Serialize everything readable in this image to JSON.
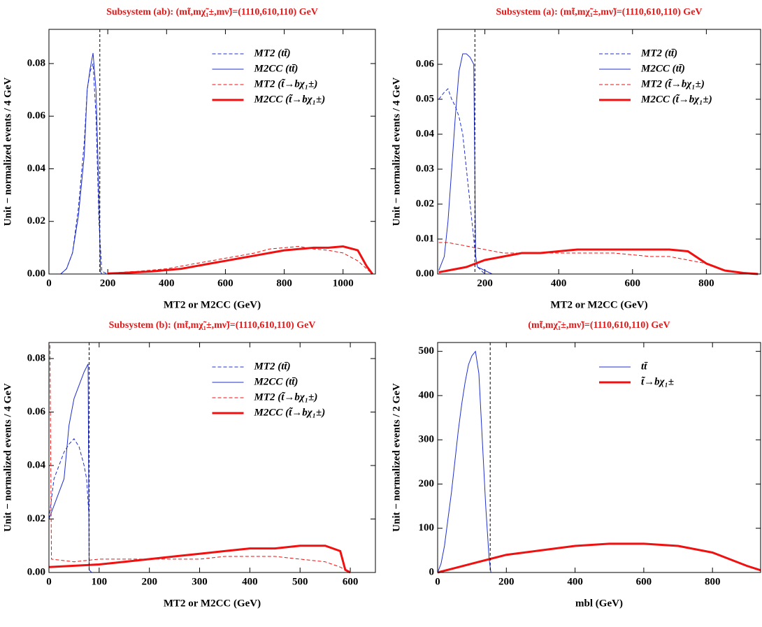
{
  "chart_data": [
    {
      "type": "line",
      "title": "Subsystem (ab): (mt̃,mχ̃₁±,mν̃)=(1110,610,110) GeV",
      "xlabel": "MT2 or M2CC (GeV)",
      "ylabel": "Unit − normalized events / 4 GeV",
      "xlim": [
        0,
        1110
      ],
      "ylim": [
        0,
        0.093
      ],
      "xticks": [
        0,
        200,
        400,
        600,
        800,
        1000
      ],
      "yticks": [
        {
          "value": 0,
          "label": "0.00"
        },
        {
          "value": 0.02,
          "label": "0.02"
        },
        {
          "value": 0.04,
          "label": "0.04"
        },
        {
          "value": 0.06,
          "label": "0.06"
        },
        {
          "value": 0.08,
          "label": "0.08"
        }
      ],
      "vline": 173,
      "series": [
        {
          "name": "MT2 (tt̄)",
          "color": "#1f2fd0",
          "dash": true,
          "width": 1,
          "x": [
            40,
            60,
            80,
            100,
            120,
            130,
            140,
            150,
            160,
            170,
            180,
            200
          ],
          "values": [
            0,
            0.002,
            0.008,
            0.025,
            0.05,
            0.07,
            0.077,
            0.08,
            0.06,
            0.02,
            0.001,
            0
          ]
        },
        {
          "name": "M2CC (tt̄)",
          "color": "#1f2fd0",
          "dash": false,
          "width": 1,
          "x": [
            40,
            60,
            80,
            100,
            120,
            130,
            140,
            150,
            160,
            170,
            175,
            180
          ],
          "values": [
            0,
            0.002,
            0.008,
            0.022,
            0.045,
            0.07,
            0.078,
            0.084,
            0.07,
            0.03,
            0.001,
            0
          ]
        },
        {
          "name": "MT2 (t̃→bχ₁±)",
          "color": "#f01010",
          "dash": true,
          "width": 1,
          "x": [
            200,
            250,
            300,
            350,
            400,
            450,
            500,
            550,
            600,
            650,
            700,
            750,
            800,
            850,
            900,
            950,
            1000,
            1050,
            1100
          ],
          "values": [
            0.0003,
            0.0007,
            0.001,
            0.0015,
            0.002,
            0.003,
            0.004,
            0.005,
            0.006,
            0.007,
            0.008,
            0.0095,
            0.01,
            0.0105,
            0.0095,
            0.009,
            0.008,
            0.005,
            0
          ]
        },
        {
          "name": "M2CC (t̃→bχ₁±)",
          "color": "#f01010",
          "dash": false,
          "width": 3,
          "x": [
            200,
            250,
            300,
            350,
            400,
            450,
            500,
            550,
            600,
            650,
            700,
            750,
            800,
            850,
            900,
            950,
            1000,
            1050,
            1080,
            1100
          ],
          "values": [
            0.0002,
            0.0004,
            0.0007,
            0.001,
            0.0015,
            0.002,
            0.003,
            0.004,
            0.005,
            0.006,
            0.007,
            0.008,
            0.009,
            0.0095,
            0.01,
            0.01,
            0.0105,
            0.009,
            0.003,
            0
          ]
        }
      ]
    },
    {
      "type": "line",
      "title": "Subsystem (a): (mt̃,mχ̃₁±,mν̃)=(1110,610,110) GeV",
      "xlabel": "MT2 or M2CC (GeV)",
      "ylabel": "Unit − normalized events / 4 GeV",
      "xlim": [
        72,
        947
      ],
      "ylim": [
        0,
        0.07
      ],
      "xticks": [
        200,
        400,
        600,
        800
      ],
      "yticks": [
        {
          "value": 0,
          "label": "0.00"
        },
        {
          "value": 0.01,
          "label": "0.01"
        },
        {
          "value": 0.02,
          "label": "0.02"
        },
        {
          "value": 0.03,
          "label": "0.03"
        },
        {
          "value": 0.04,
          "label": "0.04"
        },
        {
          "value": 0.05,
          "label": "0.05"
        },
        {
          "value": 0.06,
          "label": "0.06"
        }
      ],
      "vline": 173,
      "series": [
        {
          "name": "MT2 (tt̄)",
          "color": "#1f2fd0",
          "dash": true,
          "width": 1,
          "x": [
            75,
            90,
            100,
            110,
            120,
            130,
            140,
            150,
            160,
            170,
            175,
            180,
            200
          ],
          "values": [
            0.05,
            0.052,
            0.053,
            0.05,
            0.048,
            0.045,
            0.04,
            0.03,
            0.02,
            0.01,
            0.005,
            0.002,
            0
          ]
        },
        {
          "name": "M2CC (tt̄)",
          "color": "#1f2fd0",
          "dash": false,
          "width": 1,
          "x": [
            75,
            90,
            100,
            110,
            120,
            130,
            140,
            150,
            160,
            170,
            175,
            180,
            200,
            220
          ],
          "values": [
            0.001,
            0.005,
            0.015,
            0.03,
            0.045,
            0.058,
            0.063,
            0.063,
            0.062,
            0.06,
            0.005,
            0.002,
            0.001,
            0
          ]
        },
        {
          "name": "MT2 (t̃→bχ₁±)",
          "color": "#f01010",
          "dash": true,
          "width": 1,
          "x": [
            75,
            100,
            150,
            200,
            250,
            300,
            350,
            400,
            450,
            500,
            550,
            600,
            650,
            700,
            750,
            800,
            850,
            900,
            940
          ],
          "values": [
            0.009,
            0.009,
            0.008,
            0.007,
            0.006,
            0.006,
            0.006,
            0.006,
            0.006,
            0.006,
            0.006,
            0.0055,
            0.005,
            0.005,
            0.004,
            0.003,
            0.001,
            0.0003,
            0
          ]
        },
        {
          "name": "M2CC (t̃→bχ₁±)",
          "color": "#f01010",
          "dash": false,
          "width": 3,
          "x": [
            75,
            100,
            150,
            200,
            250,
            300,
            350,
            400,
            450,
            500,
            550,
            600,
            650,
            700,
            750,
            800,
            850,
            900,
            940
          ],
          "values": [
            0.0005,
            0.001,
            0.002,
            0.004,
            0.005,
            0.006,
            0.006,
            0.0065,
            0.007,
            0.007,
            0.007,
            0.007,
            0.007,
            0.007,
            0.0065,
            0.003,
            0.001,
            0.0003,
            0
          ]
        }
      ]
    },
    {
      "type": "line",
      "title": "Subsystem (b): (mt̃,mχ̃₁±,mν̃)=(1110,610,110) GeV",
      "xlabel": "MT2 or M2CC (GeV)",
      "ylabel": "Unit − normalized events / 4 GeV",
      "xlim": [
        0,
        650
      ],
      "ylim": [
        0,
        0.086
      ],
      "xticks": [
        0,
        100,
        200,
        300,
        400,
        500,
        600
      ],
      "yticks": [
        {
          "value": 0,
          "label": "0.00"
        },
        {
          "value": 0.02,
          "label": "0.02"
        },
        {
          "value": 0.04,
          "label": "0.04"
        },
        {
          "value": 0.06,
          "label": "0.06"
        },
        {
          "value": 0.08,
          "label": "0.08"
        }
      ],
      "vline": 80,
      "series": [
        {
          "name": "MT2 (tt̄)",
          "color": "#1f2fd0",
          "dash": true,
          "width": 1,
          "x": [
            0,
            10,
            20,
            30,
            40,
            50,
            60,
            70,
            75,
            80
          ],
          "values": [
            0.02,
            0.035,
            0.04,
            0.045,
            0.048,
            0.05,
            0.047,
            0.04,
            0.035,
            0.02
          ]
        },
        {
          "name": "M2CC (tt̄)",
          "color": "#1f2fd0",
          "dash": false,
          "width": 1,
          "x": [
            0,
            10,
            20,
            30,
            40,
            50,
            60,
            70,
            78,
            80,
            85
          ],
          "values": [
            0.02,
            0.025,
            0.03,
            0.035,
            0.055,
            0.065,
            0.07,
            0.075,
            0.078,
            0.001,
            0
          ]
        },
        {
          "name": "MT2 (t̃→bχ₁±)",
          "color": "#f01010",
          "dash": true,
          "width": 1,
          "x": [
            2,
            5,
            50,
            100,
            150,
            200,
            250,
            300,
            350,
            400,
            450,
            500,
            550,
            580,
            600
          ],
          "values": [
            0.085,
            0.005,
            0.004,
            0.005,
            0.005,
            0.005,
            0.005,
            0.005,
            0.006,
            0.006,
            0.006,
            0.005,
            0.004,
            0.002,
            0
          ]
        },
        {
          "name": "M2CC (t̃→bχ₁±)",
          "color": "#f01010",
          "dash": false,
          "width": 3,
          "x": [
            0,
            50,
            100,
            150,
            200,
            250,
            300,
            350,
            400,
            450,
            500,
            550,
            580,
            590,
            600
          ],
          "values": [
            0.002,
            0.0025,
            0.003,
            0.004,
            0.005,
            0.006,
            0.007,
            0.008,
            0.009,
            0.009,
            0.01,
            0.01,
            0.008,
            0.001,
            0
          ]
        }
      ]
    },
    {
      "type": "line",
      "title": "(mt̃,mχ̃₁±,mν̃)=(1110,610,110) GeV",
      "xlabel": "mbl (GeV)",
      "ylabel": "Unit − normalized events / 2 GeV",
      "xlim": [
        0,
        940
      ],
      "ylim": [
        0,
        520
      ],
      "xticks": [
        0,
        200,
        400,
        600,
        800
      ],
      "yticks": [
        0,
        100,
        200,
        300,
        400,
        500
      ],
      "vline": 153,
      "series": [
        {
          "name": "tt̄",
          "color": "#1f2fd0",
          "dash": false,
          "width": 1,
          "x": [
            0,
            10,
            20,
            30,
            40,
            50,
            60,
            70,
            80,
            90,
            100,
            110,
            120,
            130,
            140,
            150,
            155
          ],
          "values": [
            0,
            20,
            60,
            120,
            180,
            250,
            320,
            380,
            430,
            470,
            490,
            500,
            450,
            300,
            150,
            30,
            0
          ]
        },
        {
          "name": "t̃→bχ₁±",
          "color": "#f01010",
          "dash": false,
          "width": 3,
          "x": [
            0,
            50,
            100,
            150,
            200,
            300,
            400,
            500,
            600,
            700,
            800,
            850,
            900,
            940
          ],
          "values": [
            0,
            10,
            20,
            30,
            40,
            50,
            60,
            65,
            65,
            60,
            45,
            30,
            15,
            5
          ]
        }
      ]
    }
  ]
}
